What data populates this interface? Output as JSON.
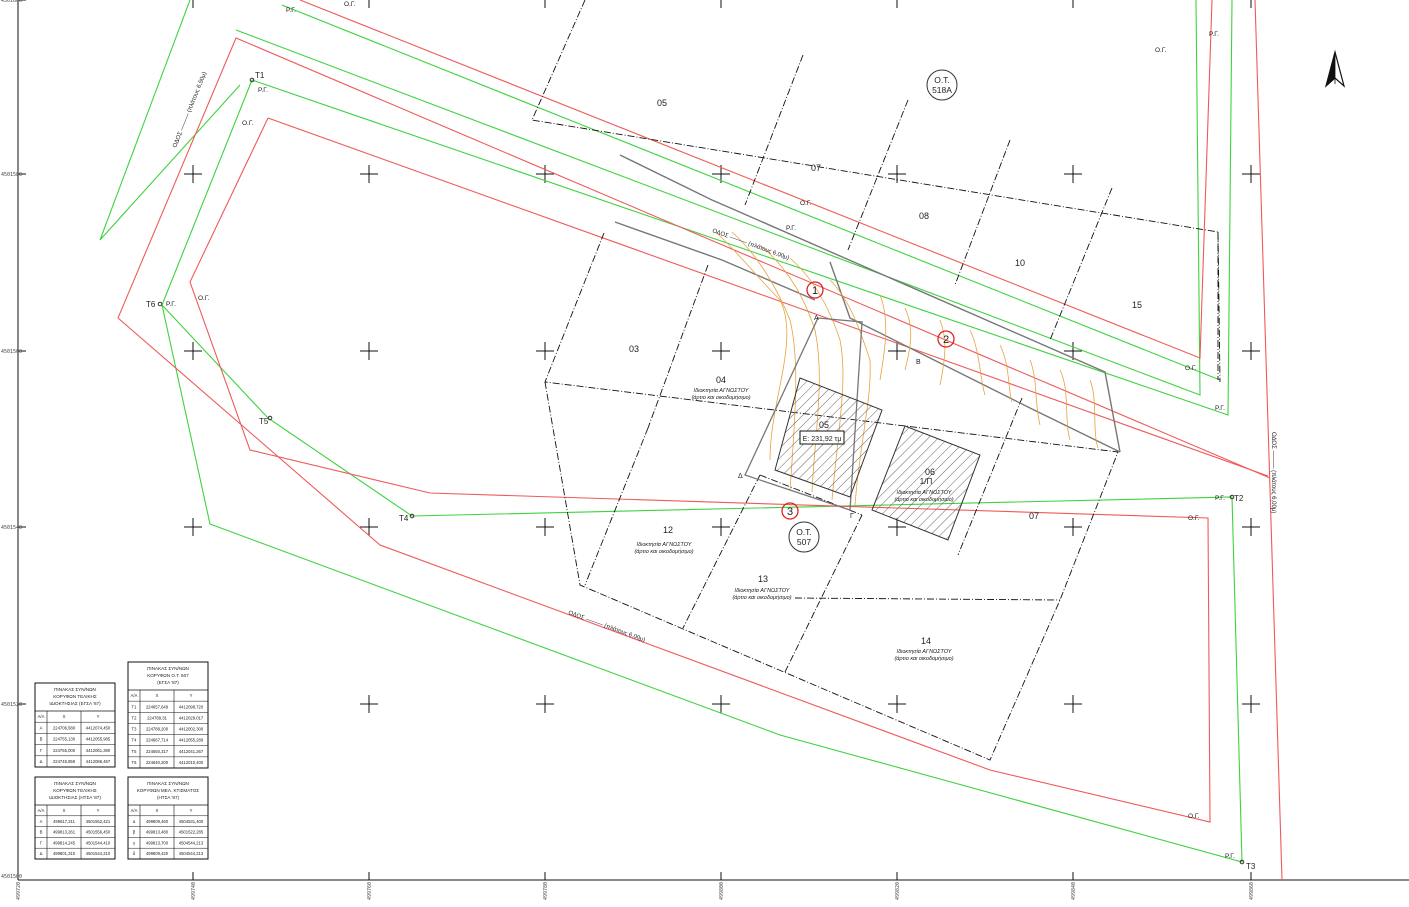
{
  "city_blocks": [
    {
      "id": "ot518a",
      "line1": "O.T.",
      "line2": "518A"
    },
    {
      "id": "ot507",
      "line1": "O.T.",
      "line2": "507"
    }
  ],
  "parcels": [
    "05",
    "07",
    "08",
    "10",
    "15",
    "03",
    "04",
    "05",
    "06",
    "07",
    "12",
    "13",
    "14"
  ],
  "parcel_subtitles": {
    "p04": "Ιδιοκτησία ΑΓΝΩΣΤΟΥ",
    "p04b": "(άρτιο και οικοδομήσιμο)",
    "p06a": "1/Π",
    "p06": "Ιδιοκτησία ΑΓΝΩΣΤΟΥ",
    "p06b": "(άρτιο και οικοδομήσιμο)",
    "p12": "Ιδιοκτησία ΑΓΝΩΣΤΟΥ",
    "p12b": "(άρτιο και οικοδομήσιμο)",
    "p13": "Ιδιοκτησία ΑΓΝΩΣΤΟΥ",
    "p13b": "(άρτιο και οικοδομήσιμο)",
    "p14": "Ιδιοκτησία ΑΓΝΩΣΤΟΥ",
    "p14b": "(άρτιο και οικοδομήσιμο)"
  },
  "area_box": "Ε: 231,92 τμ",
  "points": [
    "T1",
    "T2",
    "T3",
    "T4",
    "T5",
    "T6"
  ],
  "corners": [
    "Α",
    "Β",
    "Γ",
    "Δ"
  ],
  "markers": [
    "1",
    "2",
    "3"
  ],
  "line_labels": {
    "building": "Ο.Γ.",
    "street": "Ρ.Γ."
  },
  "street_labels": {
    "top_left": "ΟΔΟΣ ——— (πλάτους 6,50μ)",
    "middle": "ΟΔΟΣ ——— (πλάτους 6,00μ)",
    "bottom": "ΟΔΟΣ ——— (πλάτους 6,00μ)",
    "right": "ΟΔΟΣ ——— (πλάτους 6,00μ)"
  },
  "axis": {
    "x_ticks": [
      "499720",
      "499740",
      "499760",
      "499780",
      "499800",
      "499820",
      "499840",
      "499860"
    ],
    "y_ticks": [
      "4501600",
      "4501580",
      "4501560",
      "4501540",
      "4501520",
      "4501500"
    ]
  },
  "tables": [
    {
      "title": [
        "ΠΙΝΑΚΑΣ ΣΥΝ/ΝΩΝ",
        "ΚΟΡΥΦΩΝ ΤΕΛΙΚΗΣ",
        "ΙΔΙΟΚΤΗΣΙΑΣ (ΕΓΣΑ '87)"
      ],
      "headers": [
        "Α/Α",
        "Χ",
        "Υ"
      ],
      "rows": [
        [
          "Α",
          "224706,580",
          "4412074,450"
        ],
        [
          "Β",
          "224755,130",
          "4412055,985"
        ],
        [
          "Γ",
          "224755,000",
          "4412061,390"
        ],
        [
          "Δ",
          "224745,859",
          "4412086,467"
        ]
      ]
    },
    {
      "title": [
        "ΠΙΝΑΚΑΣ ΣΥΝ/ΝΩΝ",
        "ΚΟΡΥΦΩΝ Ο.Τ. 507",
        "(ΕΓΣΑ '87)"
      ],
      "headers": [
        "Α/Α",
        "Χ",
        "Υ"
      ],
      "rows": [
        [
          "Τ1",
          "224657,649",
          "4412098,720"
        ],
        [
          "Τ2",
          "224789,31",
          "4412029,017"
        ],
        [
          "Τ3",
          "224788,200",
          "4412002,300"
        ],
        [
          "Τ4",
          "224667,714",
          "4412055,289"
        ],
        [
          "Τ5",
          "224650,317",
          "4412041,267"
        ],
        [
          "Τ6",
          "224640,200",
          "4412010,400"
        ]
      ]
    },
    {
      "title": [
        "ΠΙΝΑΚΑΣ ΣΥΝ/ΝΩΝ",
        "ΚΟΡΥΦΩΝ ΤΕΛΙΚΗΣ",
        "ΙΔΙΟΚΤΗΣΙΑΣ (ΗΤΣΑ '87)"
      ],
      "headers": [
        "Α/Α",
        "Χ",
        "Υ"
      ],
      "rows": [
        [
          "Α",
          "499817,211",
          "4501552,421"
        ],
        [
          "Β",
          "499813,261",
          "4501556,450"
        ],
        [
          "Γ",
          "499814,245",
          "4501544,410"
        ],
        [
          "Δ",
          "499801,310",
          "4501544,210"
        ]
      ]
    },
    {
      "title": [
        "ΠΙΝΑΚΑΣ ΣΥΝ/ΝΩΝ",
        "ΚΟΡΥΦΩΝ ΜΕΛ. ΚΤΙΣΜΑΤΟΣ",
        "(ΗΤΣΑ '87)"
      ],
      "headers": [
        "Α/Α",
        "Χ",
        "Υ"
      ],
      "rows": [
        [
          "α",
          "499809,460",
          "4504531,400"
        ],
        [
          "β",
          "499813,480",
          "4501522,285"
        ],
        [
          "γ",
          "499813,700",
          "4504544,213"
        ],
        [
          "δ",
          "499809,420",
          "4504544,213"
        ]
      ]
    }
  ],
  "colors": {
    "building_line": "#ee5a5a",
    "street_line": "#3fd23f",
    "block_line": "#111111",
    "contour": "#e6a23c",
    "marker": "#e02020"
  },
  "icons": {
    "north_arrow": "north-arrow-icon"
  }
}
